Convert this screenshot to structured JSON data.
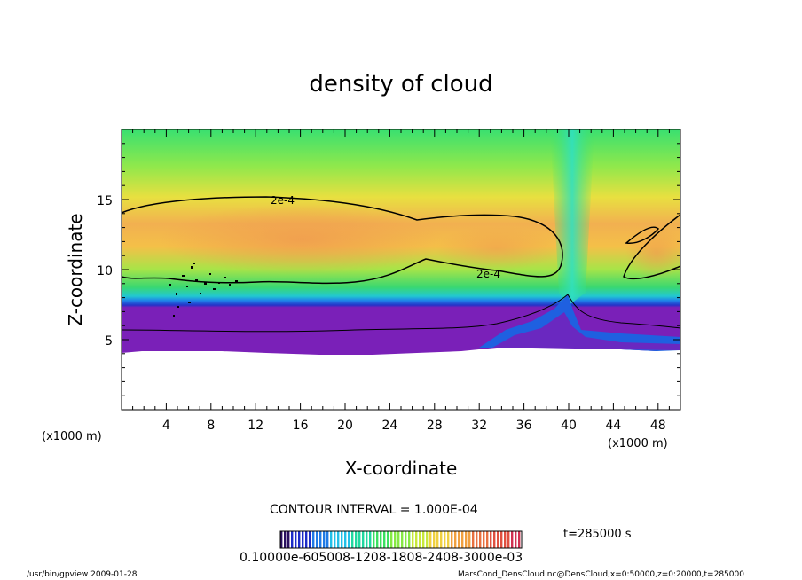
{
  "chart_data": {
    "type": "heatmap",
    "title": "density of cloud",
    "xlabel": "X-coordinate",
    "ylabel": "Z-coordinate",
    "x_unit_left": "(x1000 m)",
    "x_unit_right": "(x1000 m)",
    "x_ticks": [
      "4",
      "8",
      "12",
      "16",
      "20",
      "24",
      "28",
      "32",
      "36",
      "40",
      "44",
      "48"
    ],
    "y_ticks": [
      "5",
      "10",
      "15"
    ],
    "xlim": [
      0,
      50
    ],
    "ylim": [
      0,
      20
    ],
    "contour_labels": [
      "2e-4",
      "2e-4"
    ],
    "contour_interval_text": "CONTOUR INTERVAL = 1.000E-04",
    "time_text": "t=285000 s",
    "colorbar_text": "0.10000e-605008-1208-1808-2408-3000e-03",
    "colorbar_colors": [
      "#2a1060",
      "#1c2cc8",
      "#1f7ae6",
      "#22c0e8",
      "#20d8a0",
      "#3ae060",
      "#86e844",
      "#c8e83a",
      "#f0d040",
      "#f0a040",
      "#e87040",
      "#e05040",
      "#d03050"
    ],
    "footer_left": "/usr/bin/gpview   2009-01-28",
    "footer_right": "MarsCond_DensCloud.nc@DensCloud,x=0:50000,z=0:20000,t=285000"
  }
}
